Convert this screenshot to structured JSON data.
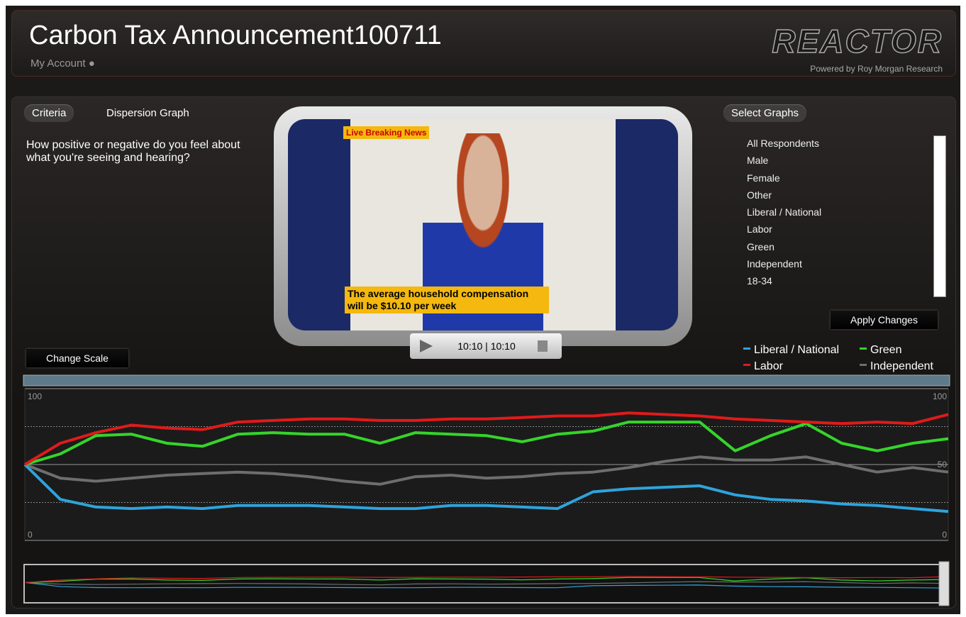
{
  "header": {
    "title": "Carbon Tax Announcement100711",
    "account": "My Account",
    "brand": "REACTOR",
    "powered_by": "Powered by Roy Morgan Research"
  },
  "tabs": [
    "Criteria",
    "Dispersion Graph"
  ],
  "question": "How positive or negative do you feel about what you're seeing and hearing?",
  "select_graphs": {
    "title": "Select Graphs",
    "items": [
      "All Respondents",
      "Male",
      "Female",
      "Other",
      "Liberal / National",
      "Labor",
      "Green",
      "Independent",
      "18-34"
    ],
    "apply": "Apply Changes"
  },
  "change_scale": "Change Scale",
  "video": {
    "live": "Live",
    "breaking": "Breaking News",
    "caption": "The average household compensation will be $10.10 per week",
    "time": "10:10 | 10:10"
  },
  "chart_data": {
    "type": "line",
    "ylim": [
      0,
      100
    ],
    "yticks": [
      0,
      50,
      100
    ],
    "grid": true,
    "series": [
      {
        "name": "Liberal / National",
        "color": "#2ea3dc",
        "values": [
          50,
          27,
          22,
          21,
          22,
          21,
          23,
          23,
          23,
          22,
          21,
          21,
          23,
          23,
          22,
          21,
          32,
          34,
          35,
          36,
          30,
          27,
          26,
          24,
          23,
          21,
          19
        ]
      },
      {
        "name": "Labor",
        "color": "#e01a1a",
        "values": [
          50,
          64,
          71,
          76,
          74,
          73,
          78,
          79,
          80,
          80,
          79,
          79,
          80,
          80,
          81,
          82,
          82,
          84,
          83,
          82,
          80,
          79,
          78,
          77,
          78,
          77,
          83
        ]
      },
      {
        "name": "Green",
        "color": "#35d42a",
        "values": [
          50,
          57,
          69,
          70,
          64,
          62,
          70,
          71,
          70,
          70,
          64,
          71,
          70,
          69,
          65,
          70,
          72,
          78,
          78,
          78,
          59,
          69,
          77,
          64,
          59,
          64,
          67
        ]
      },
      {
        "name": "Independent",
        "color": "#6e6e6e",
        "values": [
          50,
          41,
          39,
          41,
          43,
          44,
          45,
          44,
          42,
          39,
          37,
          42,
          43,
          41,
          42,
          44,
          45,
          48,
          52,
          55,
          53,
          53,
          55,
          50,
          45,
          48,
          45
        ]
      }
    ]
  }
}
